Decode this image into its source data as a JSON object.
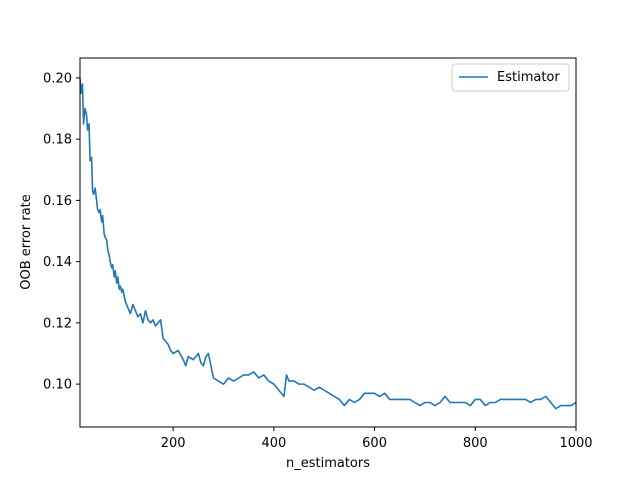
{
  "chart_data": {
    "type": "line",
    "title": "",
    "xlabel": "n_estimators",
    "ylabel": "OOB error rate",
    "xlim": [
      15,
      1000
    ],
    "ylim": [
      0.086,
      0.2065
    ],
    "x_ticks": [
      200,
      400,
      600,
      800,
      1000
    ],
    "y_ticks": [
      0.1,
      0.12,
      0.14,
      0.16,
      0.18,
      0.2
    ],
    "x_tick_labels": [
      "200",
      "400",
      "600",
      "800",
      "1000"
    ],
    "y_tick_labels": [
      "0.10",
      "0.12",
      "0.14",
      "0.16",
      "0.18",
      "0.20"
    ],
    "grid": false,
    "legend_position": "top-right",
    "series": [
      {
        "name": "Estimator",
        "color": "#1f77b4",
        "x": [
          15,
          17,
          20,
          22,
          25,
          28,
          30,
          33,
          35,
          38,
          40,
          42,
          45,
          48,
          50,
          53,
          55,
          58,
          60,
          63,
          65,
          68,
          70,
          73,
          75,
          78,
          80,
          83,
          85,
          88,
          90,
          93,
          95,
          98,
          100,
          105,
          110,
          115,
          120,
          125,
          130,
          135,
          140,
          145,
          150,
          155,
          160,
          165,
          170,
          175,
          180,
          185,
          190,
          195,
          200,
          210,
          220,
          225,
          230,
          240,
          250,
          255,
          260,
          265,
          270,
          280,
          290,
          300,
          310,
          320,
          330,
          340,
          350,
          360,
          370,
          380,
          390,
          400,
          410,
          420,
          425,
          430,
          440,
          450,
          460,
          470,
          480,
          490,
          500,
          510,
          520,
          530,
          540,
          550,
          560,
          570,
          580,
          590,
          600,
          610,
          620,
          630,
          640,
          650,
          660,
          670,
          680,
          690,
          700,
          710,
          720,
          730,
          740,
          750,
          760,
          770,
          780,
          790,
          800,
          810,
          820,
          830,
          840,
          850,
          860,
          870,
          880,
          890,
          900,
          910,
          920,
          930,
          940,
          950,
          960,
          970,
          980,
          990,
          1000
        ],
        "y": [
          0.2,
          0.195,
          0.198,
          0.185,
          0.19,
          0.188,
          0.183,
          0.185,
          0.173,
          0.174,
          0.163,
          0.162,
          0.164,
          0.16,
          0.157,
          0.156,
          0.157,
          0.153,
          0.155,
          0.149,
          0.148,
          0.147,
          0.144,
          0.142,
          0.14,
          0.138,
          0.139,
          0.135,
          0.137,
          0.133,
          0.135,
          0.131,
          0.132,
          0.13,
          0.131,
          0.127,
          0.125,
          0.123,
          0.126,
          0.124,
          0.122,
          0.123,
          0.12,
          0.124,
          0.121,
          0.12,
          0.121,
          0.119,
          0.12,
          0.121,
          0.115,
          0.114,
          0.113,
          0.111,
          0.11,
          0.111,
          0.108,
          0.106,
          0.109,
          0.108,
          0.11,
          0.107,
          0.106,
          0.109,
          0.11,
          0.102,
          0.101,
          0.1,
          0.102,
          0.101,
          0.102,
          0.103,
          0.103,
          0.104,
          0.102,
          0.103,
          0.101,
          0.1,
          0.098,
          0.096,
          0.103,
          0.101,
          0.101,
          0.1,
          0.1,
          0.099,
          0.098,
          0.099,
          0.098,
          0.097,
          0.096,
          0.095,
          0.093,
          0.095,
          0.094,
          0.095,
          0.097,
          0.097,
          0.097,
          0.096,
          0.097,
          0.095,
          0.095,
          0.095,
          0.095,
          0.095,
          0.094,
          0.093,
          0.094,
          0.094,
          0.093,
          0.094,
          0.096,
          0.094,
          0.094,
          0.094,
          0.094,
          0.093,
          0.095,
          0.095,
          0.093,
          0.094,
          0.094,
          0.095,
          0.095,
          0.095,
          0.095,
          0.095,
          0.095,
          0.094,
          0.095,
          0.095,
          0.096,
          0.094,
          0.092,
          0.093,
          0.093,
          0.093,
          0.094
        ]
      }
    ]
  }
}
